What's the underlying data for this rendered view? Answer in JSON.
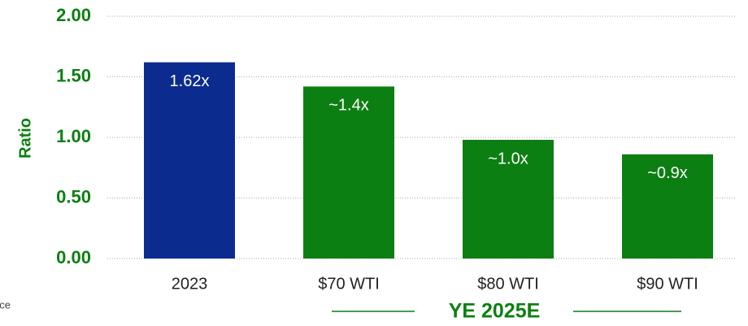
{
  "chart_data": {
    "type": "bar",
    "y_label": "Ratio",
    "categories": [
      "2023",
      "$70 WTI",
      "$80 WTI",
      "$90 WTI"
    ],
    "values": [
      1.62,
      1.42,
      0.98,
      0.86
    ],
    "value_labels": [
      "1.62x",
      "~1.4x",
      "~1.0x",
      "~0.9x"
    ],
    "colors": [
      "#0b2b8f",
      "#0c7f12",
      "#0c7f12",
      "#0c7f12"
    ],
    "ylim": [
      0,
      2
    ],
    "yticks": [
      {
        "value": 0,
        "label": "0.00"
      },
      {
        "value": 0.5,
        "label": "0.50"
      },
      {
        "value": 1,
        "label": "1.00"
      },
      {
        "value": 1.5,
        "label": "1.50"
      },
      {
        "value": 2,
        "label": "2.00"
      }
    ],
    "grid": true,
    "group_label": "YE 2025E",
    "note": "rice"
  }
}
